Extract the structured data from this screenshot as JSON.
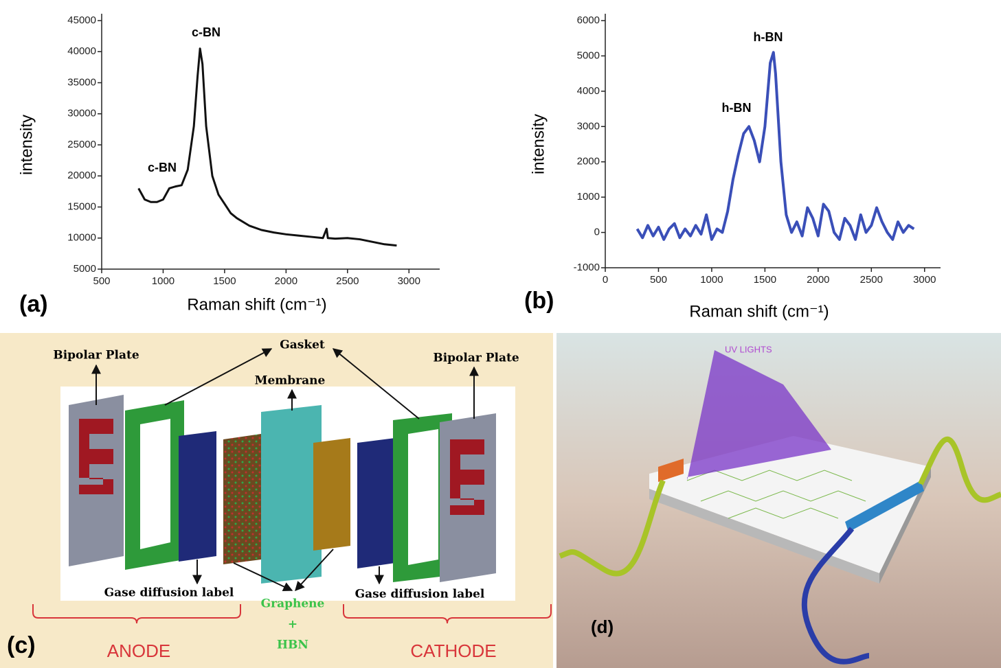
{
  "chart_data": [
    {
      "type": "line",
      "panel_label": "(a)",
      "x_label": "Raman shift (cm⁻¹)",
      "y_label": "intensity",
      "annotations": [
        "c-BN",
        "c-BN"
      ],
      "xlim": [
        500,
        3250
      ],
      "xticks": [
        500,
        1000,
        1500,
        2000,
        2500,
        3000
      ],
      "ylim": [
        5000,
        45000
      ],
      "yticks": [
        5000,
        10000,
        15000,
        20000,
        25000,
        30000,
        35000,
        40000,
        45000
      ],
      "series": [
        {
          "color": "#111111",
          "x": [
            800,
            850,
            900,
            950,
            1000,
            1050,
            1100,
            1150,
            1200,
            1250,
            1280,
            1300,
            1320,
            1350,
            1400,
            1450,
            1500,
            1550,
            1600,
            1700,
            1800,
            1900,
            2000,
            2100,
            2200,
            2300,
            2330,
            2340,
            2400,
            2500,
            2600,
            2700,
            2800,
            2900
          ],
          "values": [
            18000,
            16200,
            15800,
            15800,
            16200,
            18000,
            18300,
            18500,
            21000,
            28000,
            36000,
            40500,
            38000,
            28000,
            20000,
            17000,
            15500,
            14000,
            13200,
            12000,
            11300,
            10900,
            10600,
            10400,
            10200,
            10000,
            11500,
            10000,
            9900,
            10000,
            9800,
            9400,
            9000,
            8800
          ]
        }
      ]
    },
    {
      "type": "line",
      "panel_label": "(b)",
      "x_label": "Raman shift (cm⁻¹)",
      "y_label": "intensity",
      "annotations": [
        "h-BN",
        "h-BN"
      ],
      "xlim": [
        0,
        3150
      ],
      "xticks": [
        0,
        500,
        1000,
        1500,
        2000,
        2500,
        3000
      ],
      "ylim": [
        -1000,
        6000
      ],
      "yticks": [
        -1000,
        0,
        1000,
        2000,
        3000,
        4000,
        5000,
        6000
      ],
      "series": [
        {
          "color": "#3a4fb8",
          "x": [
            300,
            350,
            400,
            450,
            500,
            550,
            600,
            650,
            700,
            750,
            800,
            850,
            900,
            950,
            1000,
            1050,
            1100,
            1150,
            1200,
            1250,
            1300,
            1350,
            1400,
            1450,
            1500,
            1550,
            1580,
            1600,
            1650,
            1700,
            1750,
            1800,
            1850,
            1900,
            1950,
            2000,
            2050,
            2100,
            2150,
            2200,
            2250,
            2300,
            2350,
            2400,
            2450,
            2500,
            2550,
            2600,
            2650,
            2700,
            2750,
            2800,
            2850,
            2900
          ],
          "values": [
            100,
            -150,
            200,
            -100,
            150,
            -200,
            100,
            250,
            -150,
            100,
            -100,
            200,
            -50,
            500,
            -200,
            100,
            0,
            600,
            1500,
            2200,
            2800,
            3000,
            2600,
            2000,
            3000,
            4800,
            5100,
            4500,
            2000,
            500,
            0,
            300,
            -100,
            700,
            400,
            -100,
            800,
            600,
            0,
            -200,
            400,
            200,
            -200,
            500,
            0,
            200,
            700,
            300,
            0,
            -200,
            300,
            0,
            200,
            100
          ]
        }
      ]
    }
  ],
  "diagram_c": {
    "panel_label": "(c)",
    "labels": [
      "Bipolar Plate",
      "Gasket",
      "Membrane",
      "Bipolar Plate",
      "Gase diffusion label",
      "Gase diffusion label",
      "Graphene",
      "+",
      "HBN",
      "ANODE",
      "CATHODE"
    ]
  },
  "diagram_d": {
    "panel_label": "(d)",
    "labels": [
      "UV LIGHTS"
    ]
  }
}
